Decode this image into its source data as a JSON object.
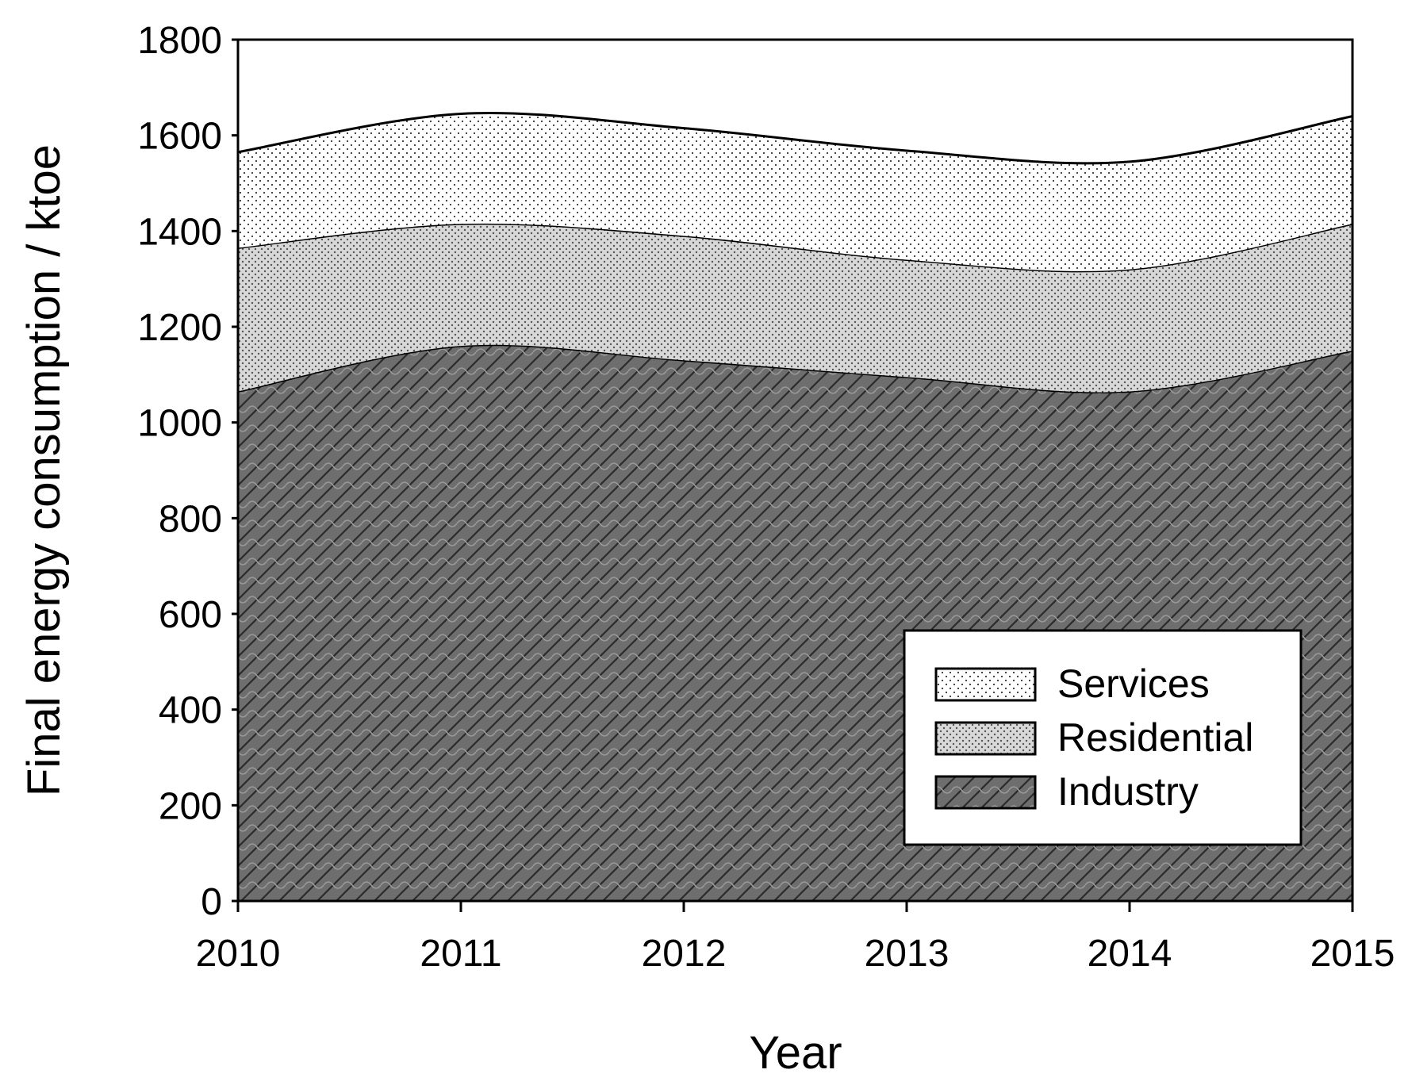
{
  "chart_data": {
    "type": "area",
    "stacked": true,
    "title": "",
    "xlabel": "Year",
    "ylabel": "Final energy  consumption / ktoe",
    "x": [
      2010,
      2011,
      2012,
      2013,
      2014,
      2015
    ],
    "xlim": [
      2010,
      2015
    ],
    "ylim": [
      0,
      1800
    ],
    "xticks": [
      "2010",
      "2011",
      "2012",
      "2013",
      "2014",
      "2015"
    ],
    "yticks": [
      "0",
      "200",
      "400",
      "600",
      "800",
      "1000",
      "1200",
      "1400",
      "1600",
      "1800"
    ],
    "grid": false,
    "legend_position": "bottom-right",
    "series": [
      {
        "name": "Industry",
        "pattern": "crosshatch",
        "color": "#6e6e6e",
        "values": [
          1065,
          1160,
          1130,
          1095,
          1065,
          1150
        ]
      },
      {
        "name": "Residential",
        "pattern": "fine-dots",
        "color": "#cfcfcf",
        "values": [
          300,
          255,
          260,
          245,
          255,
          265
        ]
      },
      {
        "name": "Services",
        "pattern": "sparse-dots",
        "color": "#ffffff",
        "values": [
          200,
          230,
          225,
          228,
          225,
          225
        ]
      }
    ]
  }
}
